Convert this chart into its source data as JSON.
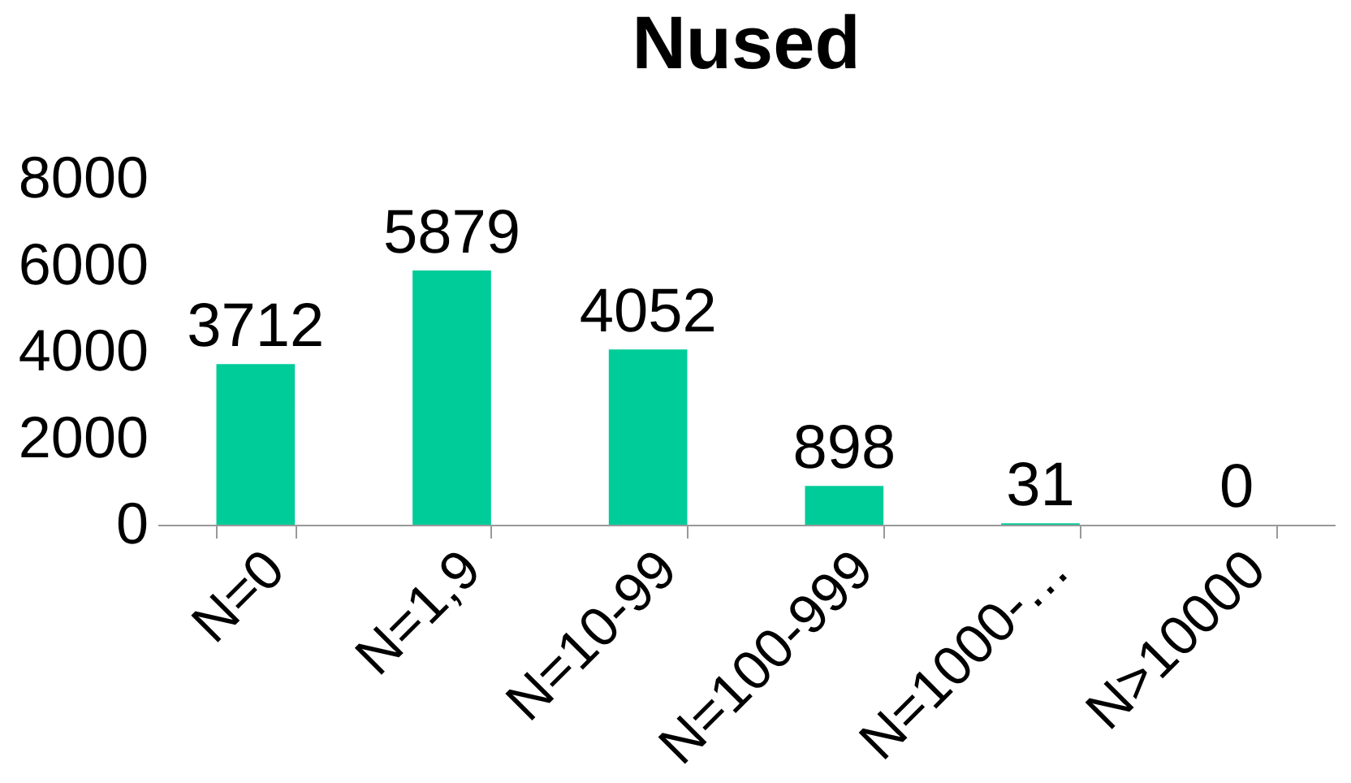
{
  "chart_data": {
    "type": "bar",
    "title": "Nused",
    "categories": [
      "N=0",
      "N=1,9",
      "N=10-99",
      "N=100-999",
      "N=1000-…",
      "N>10000"
    ],
    "values": [
      3712,
      5879,
      4052,
      898,
      31,
      0
    ],
    "color": "#00cc99",
    "ylim": [
      0,
      8000
    ],
    "yticks": [
      0,
      2000,
      4000,
      6000,
      8000
    ],
    "grid": false,
    "data_labels": true
  }
}
